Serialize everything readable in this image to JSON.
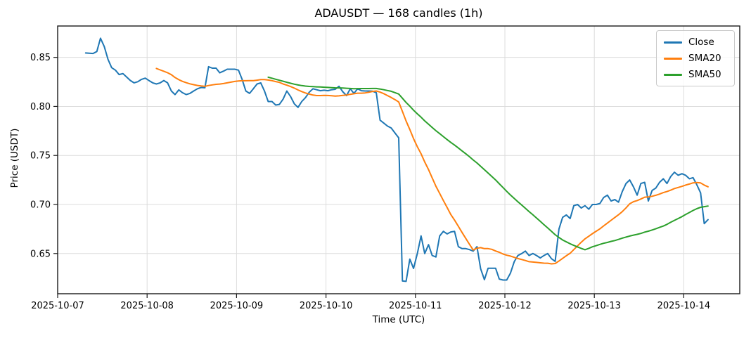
{
  "colors": {
    "close": "#1f77b4",
    "sma20": "#ff7f0e",
    "sma50": "#2ca02c",
    "grid": "#dcdcdc",
    "spine": "#1a1a1a",
    "text": "#000000",
    "background": "#ffffff"
  },
  "chart_data": {
    "type": "line",
    "title": "ADAUSDT — 168 candles (1h)",
    "xlabel": "Time (UTC)",
    "ylabel": "Price (USDT)",
    "n_points": 168,
    "interval": "1h",
    "grid": true,
    "legend_position": "upper right",
    "x_tick_labels": [
      "2025-10-07",
      "2025-10-08",
      "2025-10-09",
      "2025-10-10",
      "2025-10-11",
      "2025-10-12",
      "2025-10-13",
      "2025-10-14"
    ],
    "y_ticks": [
      0.65,
      0.7,
      0.75,
      0.8,
      0.85
    ],
    "ylim": [
      0.609,
      0.882
    ],
    "x_axis": {
      "unit": "hours",
      "tick_interval_hours": 24,
      "first_point_offset_hours": 7.5,
      "step_hours": 1
    },
    "series": [
      {
        "name": "Close",
        "color": "#1f77b4",
        "values": [
          0.8545,
          0.8542,
          0.854,
          0.856,
          0.8695,
          0.861,
          0.848,
          0.8395,
          0.837,
          0.8325,
          0.8335,
          0.83,
          0.8265,
          0.824,
          0.8252,
          0.8276,
          0.8288,
          0.8264,
          0.824,
          0.8229,
          0.824,
          0.8264,
          0.824,
          0.8157,
          0.8121,
          0.8169,
          0.814,
          0.8121,
          0.8133,
          0.8157,
          0.818,
          0.8193,
          0.819,
          0.8405,
          0.839,
          0.839,
          0.8343,
          0.836,
          0.8379,
          0.8379,
          0.8379,
          0.837,
          0.8276,
          0.8157,
          0.8133,
          0.818,
          0.8229,
          0.824,
          0.8157,
          0.805,
          0.805,
          0.8014,
          0.802,
          0.8074,
          0.8157,
          0.81,
          0.8026,
          0.799,
          0.805,
          0.809,
          0.8145,
          0.818,
          0.817,
          0.816,
          0.8165,
          0.816,
          0.817,
          0.8175,
          0.8205,
          0.815,
          0.811,
          0.818,
          0.8133,
          0.818,
          0.816,
          0.8157,
          0.8157,
          0.8155,
          0.814,
          0.786,
          0.783,
          0.78,
          0.778,
          0.773,
          0.768,
          0.622,
          0.6216,
          0.6443,
          0.6348,
          0.65,
          0.668,
          0.65,
          0.659,
          0.648,
          0.6465,
          0.668,
          0.6726,
          0.67,
          0.672,
          0.6726,
          0.657,
          0.655,
          0.655,
          0.654,
          0.6525,
          0.657,
          0.6345,
          0.6233,
          0.635,
          0.635,
          0.635,
          0.624,
          0.623,
          0.623,
          0.63,
          0.6417,
          0.648,
          0.65,
          0.6525,
          0.648,
          0.65,
          0.648,
          0.6455,
          0.648,
          0.65,
          0.6447,
          0.642,
          0.675,
          0.6869,
          0.6893,
          0.6857,
          0.6988,
          0.7,
          0.6964,
          0.6988,
          0.6952,
          0.7,
          0.7,
          0.701,
          0.7071,
          0.7095,
          0.7036,
          0.705,
          0.7024,
          0.7131,
          0.7214,
          0.725,
          0.7179,
          0.7095,
          0.7214,
          0.7226,
          0.7036,
          0.7143,
          0.7167,
          0.7226,
          0.7262,
          0.7214,
          0.7286,
          0.7329,
          0.7298,
          0.7314,
          0.7298,
          0.7262,
          0.7274,
          0.7202,
          0.7119,
          0.6805,
          0.6845
        ]
      },
      {
        "name": "SMA20",
        "color": "#ff7f0e",
        "derived": {
          "method": "sma",
          "window": 20,
          "of": "Close"
        }
      },
      {
        "name": "SMA50",
        "color": "#2ca02c",
        "derived": {
          "method": "sma",
          "window": 50,
          "of": "Close"
        }
      }
    ]
  }
}
